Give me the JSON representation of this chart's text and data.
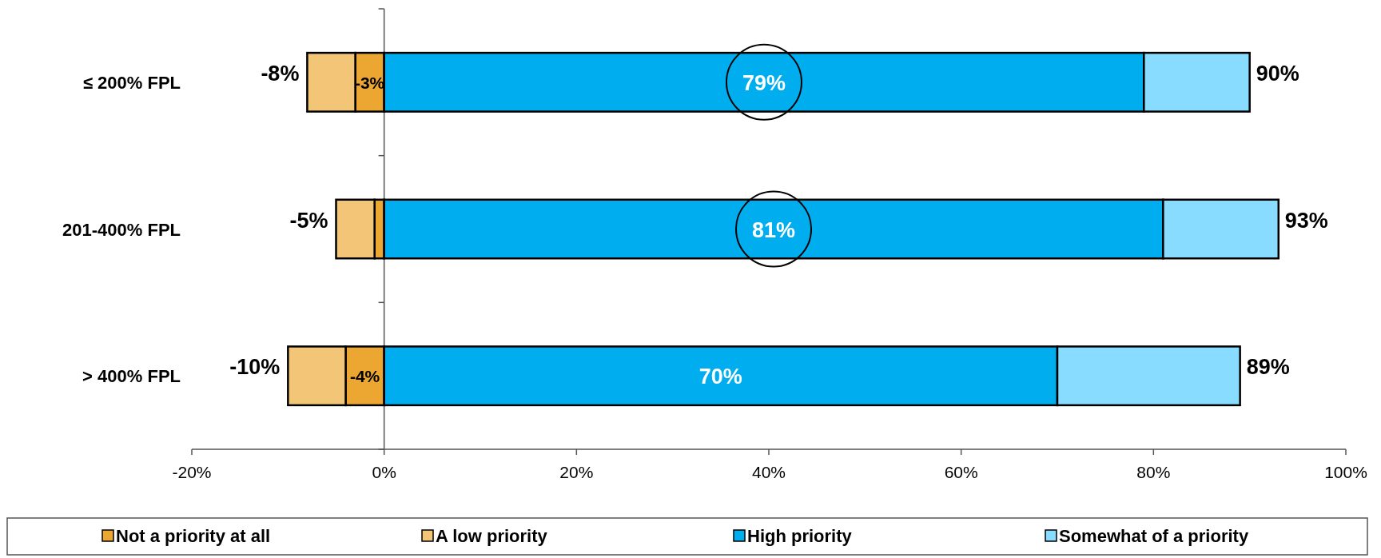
{
  "chart_data": {
    "type": "bar",
    "orientation": "horizontal",
    "stacked": true,
    "categories": [
      "≤ 200% FPL",
      "201-400% FPL",
      "> 400% FPL"
    ],
    "series": [
      {
        "name": "Not a priority at all",
        "color": "#eca733",
        "values": [
          -3,
          -1,
          -4
        ],
        "value_labels": [
          "-3%",
          null,
          "-4%"
        ]
      },
      {
        "name": "A low priority",
        "color": "#f3c577",
        "values": [
          -5,
          -4,
          -6
        ]
      },
      {
        "name": "High priority",
        "color": "#00aeef",
        "values": [
          79,
          81,
          70
        ],
        "value_labels": [
          "79%",
          "81%",
          "70%"
        ]
      },
      {
        "name": "Somewhat of a priority",
        "color": "#87dcff",
        "values": [
          11,
          12,
          19
        ]
      }
    ],
    "annotations": [
      {
        "text": "-8%",
        "x": -8,
        "y": "≤ 200% FPL"
      },
      {
        "text": "-5%",
        "x": -5,
        "y": "201-400% FPL"
      },
      {
        "text": "-10%",
        "x": -10,
        "y": "> 400% FPL"
      },
      {
        "text": "90%",
        "x": 90,
        "y": "≤ 200% FPL"
      },
      {
        "text": "93%",
        "x": 93,
        "y": "201-400% FPL"
      },
      {
        "text": "89%",
        "x": 89,
        "y": "> 400% FPL"
      }
    ],
    "xlim": [
      -20,
      100
    ],
    "xticks": [
      {
        "value": -20,
        "label": "-20%"
      },
      {
        "value": 0,
        "label": "0%"
      },
      {
        "value": 20,
        "label": "20%"
      },
      {
        "value": 40,
        "label": "40%"
      },
      {
        "value": 60,
        "label": "60%"
      },
      {
        "value": 80,
        "label": "80%"
      },
      {
        "value": 100,
        "label": "100%"
      }
    ],
    "legend": "bottom"
  }
}
